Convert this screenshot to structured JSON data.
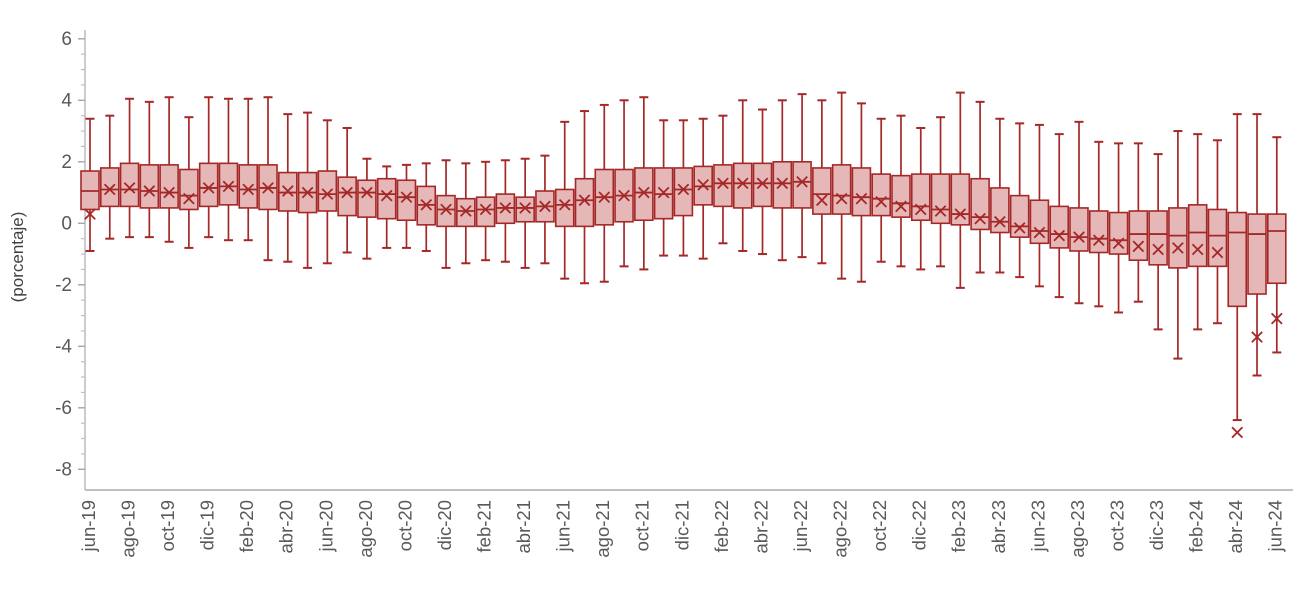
{
  "chart_data": {
    "type": "boxplot",
    "title": "",
    "ylabel": "(porcentaje)",
    "xlabel": "",
    "ylim": [
      -8,
      6
    ],
    "y_ticks": [
      6,
      4,
      2,
      0,
      -2,
      -4,
      -6,
      -8
    ],
    "minor_tick_step": 0.5,
    "x_tick_every": 2,
    "legend": "none",
    "grid": false,
    "colors": {
      "box_fill": "#E5B7B7",
      "box_border": "#A52828",
      "whisker": "#A52828",
      "mean_marker": "#A52828",
      "axis_line": "#BFBFBF",
      "major_tick": "#A6A6A6",
      "minor_tick": "#BFBFBF",
      "tick_label": "#595959",
      "axis_title": "#404040"
    },
    "mean_marker_glyph": "x-cross",
    "months": [
      "jun-19",
      "jul-19",
      "ago-19",
      "sep-19",
      "oct-19",
      "nov-19",
      "dic-19",
      "ene-20",
      "feb-20",
      "mar-20",
      "abr-20",
      "may-20",
      "jun-20",
      "jul-20",
      "ago-20",
      "sep-20",
      "oct-20",
      "nov-20",
      "dic-20",
      "ene-21",
      "feb-21",
      "mar-21",
      "abr-21",
      "may-21",
      "jun-21",
      "jul-21",
      "ago-21",
      "sep-21",
      "oct-21",
      "nov-21",
      "dic-21",
      "ene-22",
      "feb-22",
      "mar-22",
      "abr-22",
      "may-22",
      "jun-22",
      "jul-22",
      "ago-22",
      "sep-22",
      "oct-22",
      "nov-22",
      "dic-22",
      "ene-23",
      "feb-23",
      "mar-23",
      "abr-23",
      "may-23",
      "jun-23",
      "jul-23",
      "ago-23",
      "sep-23",
      "oct-23",
      "nov-23",
      "dic-23",
      "ene-24",
      "feb-24",
      "mar-24",
      "abr-24",
      "may-24",
      "jun-24"
    ],
    "series_note": "boxes: [whisker_low, q1, median, q3, whisker_high, mean] in percent",
    "boxes": [
      [
        -0.9,
        0.45,
        1.05,
        1.7,
        3.4,
        0.3
      ],
      [
        -0.5,
        0.55,
        1.1,
        1.8,
        3.5,
        1.1
      ],
      [
        -0.45,
        0.55,
        1.1,
        1.95,
        4.05,
        1.15
      ],
      [
        -0.45,
        0.5,
        1.05,
        1.9,
        3.95,
        1.05
      ],
      [
        -0.6,
        0.5,
        1.0,
        1.9,
        4.1,
        1.0
      ],
      [
        -0.8,
        0.45,
        0.9,
        1.75,
        3.45,
        0.8
      ],
      [
        -0.45,
        0.55,
        1.15,
        1.95,
        4.1,
        1.15
      ],
      [
        -0.55,
        0.6,
        1.2,
        1.95,
        4.05,
        1.2
      ],
      [
        -0.55,
        0.5,
        1.1,
        1.9,
        4.05,
        1.1
      ],
      [
        -1.2,
        0.45,
        1.15,
        1.9,
        4.1,
        1.15
      ],
      [
        -1.25,
        0.4,
        1.0,
        1.65,
        3.55,
        1.05
      ],
      [
        -1.45,
        0.35,
        1.0,
        1.65,
        3.6,
        1.0
      ],
      [
        -1.3,
        0.4,
        0.95,
        1.7,
        3.35,
        0.95
      ],
      [
        -0.95,
        0.25,
        1.0,
        1.5,
        3.1,
        1.0
      ],
      [
        -1.15,
        0.2,
        1.0,
        1.4,
        2.1,
        1.0
      ],
      [
        -0.8,
        0.15,
        0.95,
        1.45,
        1.85,
        0.9
      ],
      [
        -0.8,
        0.1,
        0.85,
        1.4,
        1.9,
        0.85
      ],
      [
        -0.9,
        -0.05,
        0.6,
        1.2,
        1.95,
        0.6
      ],
      [
        -1.45,
        -0.1,
        0.45,
        0.9,
        2.05,
        0.45
      ],
      [
        -1.3,
        -0.1,
        0.4,
        0.8,
        1.95,
        0.4
      ],
      [
        -1.2,
        -0.1,
        0.45,
        0.85,
        2.0,
        0.45
      ],
      [
        -1.25,
        0.0,
        0.5,
        0.95,
        2.05,
        0.5
      ],
      [
        -1.45,
        0.05,
        0.5,
        0.85,
        2.1,
        0.5
      ],
      [
        -1.3,
        0.05,
        0.55,
        1.05,
        2.2,
        0.55
      ],
      [
        -1.8,
        -0.1,
        0.6,
        1.1,
        3.3,
        0.6
      ],
      [
        -1.95,
        -0.1,
        0.75,
        1.45,
        3.65,
        0.75
      ],
      [
        -1.9,
        -0.05,
        0.85,
        1.75,
        3.85,
        0.85
      ],
      [
        -1.4,
        0.05,
        0.9,
        1.75,
        4.0,
        0.9
      ],
      [
        -1.5,
        0.1,
        1.0,
        1.8,
        4.1,
        1.0
      ],
      [
        -1.05,
        0.15,
        0.95,
        1.8,
        3.35,
        1.0
      ],
      [
        -1.05,
        0.25,
        1.1,
        1.8,
        3.35,
        1.1
      ],
      [
        -1.15,
        0.6,
        1.2,
        1.85,
        3.4,
        1.25
      ],
      [
        -0.65,
        0.55,
        1.3,
        1.9,
        3.5,
        1.3
      ],
      [
        -0.9,
        0.5,
        1.3,
        1.95,
        4.0,
        1.3
      ],
      [
        -1.0,
        0.55,
        1.3,
        1.95,
        3.7,
        1.3
      ],
      [
        -1.2,
        0.5,
        1.3,
        2.0,
        4.0,
        1.3
      ],
      [
        -1.1,
        0.5,
        1.35,
        2.0,
        4.2,
        1.35
      ],
      [
        -1.3,
        0.3,
        0.95,
        1.8,
        4.0,
        0.75
      ],
      [
        -1.8,
        0.3,
        0.9,
        1.9,
        4.25,
        0.8
      ],
      [
        -1.9,
        0.25,
        0.85,
        1.8,
        3.9,
        0.8
      ],
      [
        -1.25,
        0.25,
        0.8,
        1.6,
        3.4,
        0.7
      ],
      [
        -1.4,
        0.2,
        0.65,
        1.55,
        3.5,
        0.55
      ],
      [
        -1.5,
        0.1,
        0.55,
        1.6,
        3.1,
        0.45
      ],
      [
        -1.4,
        0.0,
        0.45,
        1.6,
        3.45,
        0.4
      ],
      [
        -2.1,
        -0.05,
        0.3,
        1.6,
        4.25,
        0.3
      ],
      [
        -1.6,
        -0.2,
        0.2,
        1.45,
        3.95,
        0.15
      ],
      [
        -1.6,
        -0.3,
        0.05,
        1.15,
        3.4,
        0.05
      ],
      [
        -1.75,
        -0.45,
        -0.1,
        0.9,
        3.25,
        -0.15
      ],
      [
        -2.05,
        -0.65,
        -0.25,
        0.75,
        3.2,
        -0.3
      ],
      [
        -2.4,
        -0.8,
        -0.35,
        0.55,
        2.9,
        -0.4
      ],
      [
        -2.6,
        -0.9,
        -0.45,
        0.5,
        3.3,
        -0.45
      ],
      [
        -2.7,
        -0.95,
        -0.5,
        0.4,
        2.65,
        -0.55
      ],
      [
        -2.9,
        -1.0,
        -0.55,
        0.35,
        2.6,
        -0.65
      ],
      [
        -2.55,
        -1.2,
        -0.35,
        0.4,
        2.6,
        -0.75
      ],
      [
        -3.45,
        -1.35,
        -0.35,
        0.4,
        2.25,
        -0.85
      ],
      [
        -4.4,
        -1.45,
        -0.4,
        0.5,
        3.0,
        -0.8
      ],
      [
        -3.45,
        -1.4,
        -0.3,
        0.6,
        2.9,
        -0.85
      ],
      [
        -3.25,
        -1.4,
        -0.4,
        0.45,
        2.7,
        -0.95
      ],
      [
        -6.4,
        -2.7,
        -0.3,
        0.35,
        3.55,
        -6.8
      ],
      [
        -4.95,
        -2.3,
        -0.35,
        0.3,
        3.55,
        -3.7
      ],
      [
        -4.2,
        -1.95,
        -0.25,
        0.3,
        2.8,
        -3.1
      ]
    ]
  }
}
